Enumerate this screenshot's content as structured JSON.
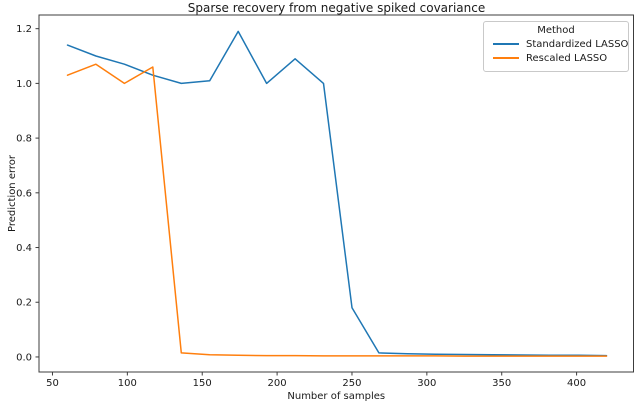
{
  "figure": {
    "title": "Sparse recovery from negative spiked covariance",
    "xlabel": "Number of samples",
    "ylabel": "Prediction error"
  },
  "legend": {
    "title": "Method",
    "entries": [
      {
        "label": "Standardized LASSO",
        "color": "#1f77b4"
      },
      {
        "label": "Rescaled LASSO",
        "color": "#ff7f0e"
      }
    ]
  },
  "chart_data": {
    "type": "line",
    "title": "Sparse recovery from negative spiked covariance",
    "xlabel": "Number of samples",
    "ylabel": "Prediction error",
    "grid": false,
    "legend_position": "upper right",
    "legend_title": "Method",
    "xlim": [
      41,
      438
    ],
    "ylim": [
      -0.055,
      1.25
    ],
    "xticks": [
      50,
      100,
      150,
      200,
      250,
      300,
      350,
      400
    ],
    "xtick_labels": [
      "50",
      "100",
      "150",
      "200",
      "250",
      "300",
      "350",
      "400"
    ],
    "yticks": [
      0.0,
      0.2,
      0.4,
      0.6,
      0.8,
      1.0,
      1.2
    ],
    "ytick_labels": [
      "0.0",
      "0.2",
      "0.4",
      "0.6",
      "0.8",
      "1.0",
      "1.2"
    ],
    "x": [
      60,
      79,
      98,
      117,
      136,
      155,
      174,
      193,
      212,
      231,
      250,
      268,
      287,
      306,
      325,
      344,
      363,
      382,
      401,
      420
    ],
    "series": [
      {
        "name": "Standardized LASSO",
        "color": "#1f77b4",
        "values": [
          1.14,
          1.1,
          1.07,
          1.03,
          1.0,
          1.01,
          1.19,
          1.0,
          1.09,
          1.0,
          0.18,
          0.015,
          0.012,
          0.01,
          0.009,
          0.008,
          0.007,
          0.006,
          0.006,
          0.005
        ]
      },
      {
        "name": "Rescaled LASSO",
        "color": "#ff7f0e",
        "values": [
          1.03,
          1.07,
          1.0,
          1.06,
          0.015,
          0.008,
          0.006,
          0.005,
          0.005,
          0.004,
          0.004,
          0.004,
          0.004,
          0.004,
          0.003,
          0.003,
          0.003,
          0.003,
          0.003,
          0.003
        ]
      }
    ]
  }
}
